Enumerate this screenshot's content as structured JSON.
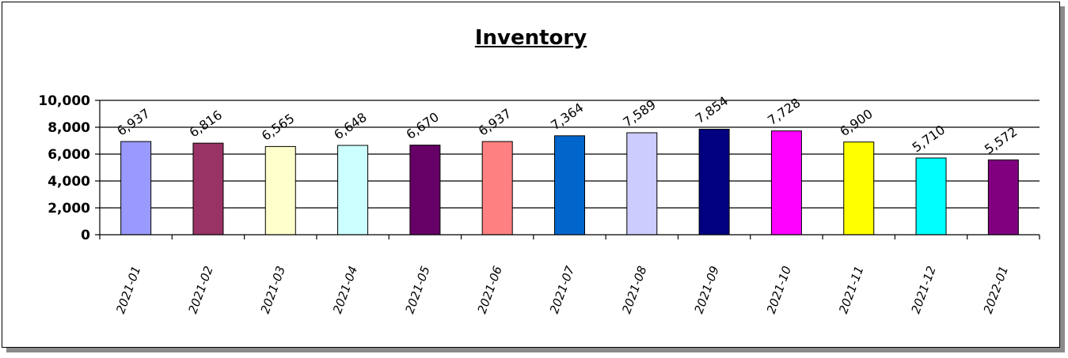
{
  "chart_data": {
    "type": "bar",
    "title": "Inventory",
    "xlabel": "",
    "ylabel": "",
    "ylim": [
      0,
      10000
    ],
    "yticks": [
      "0",
      "2,000",
      "4,000",
      "6,000",
      "8,000",
      "10,000"
    ],
    "grid": true,
    "legend": "none",
    "categories": [
      "2021-01",
      "2021-02",
      "2021-03",
      "2021-04",
      "2021-05",
      "2021-06",
      "2021-07",
      "2021-08",
      "2021-09",
      "2021-10",
      "2021-11",
      "2021-12",
      "2022-01"
    ],
    "values": [
      6937,
      6816,
      6565,
      6648,
      6670,
      6937,
      7364,
      7589,
      7854,
      7728,
      6900,
      5710,
      5572
    ],
    "data_labels": [
      "6,937",
      "6,816",
      "6,565",
      "6,648",
      "6,670",
      "6,937",
      "7,364",
      "7,589",
      "7,854",
      "7,728",
      "6,900",
      "5,710",
      "5,572"
    ],
    "colors": [
      "#9999ff",
      "#993366",
      "#ffffcc",
      "#ccffff",
      "#660066",
      "#ff8080",
      "#0066cc",
      "#ccccff",
      "#000080",
      "#ff00ff",
      "#ffff00",
      "#00ffff",
      "#800080"
    ]
  }
}
